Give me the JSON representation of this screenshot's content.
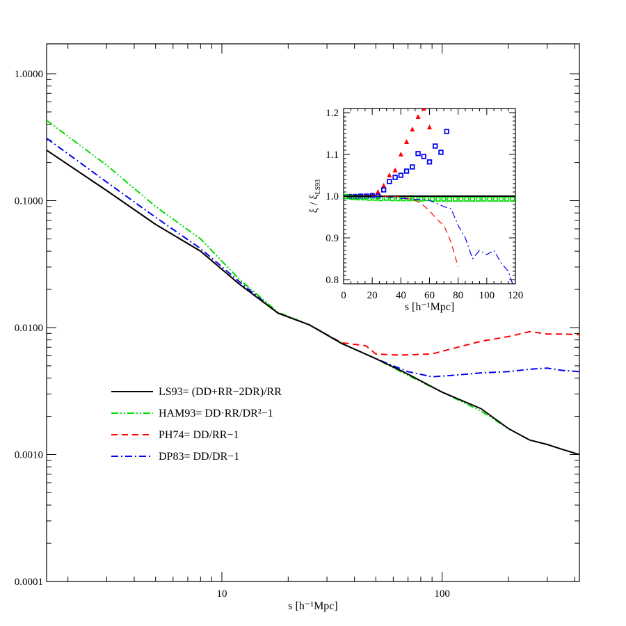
{
  "chart_data": [
    {
      "type": "line",
      "xlabel": "s [h⁻¹Mpc]",
      "ylabel": "",
      "xscale": "log",
      "yscale": "log",
      "xlim": [
        1.6,
        420
      ],
      "ylim": [
        0.0001,
        1.0
      ],
      "x_ticks": [
        "10",
        "100"
      ],
      "y_ticks": [
        "1.0000",
        "0.1000",
        "0.0100",
        "0.0010",
        "0.0001"
      ],
      "legend_placement": "lower-left",
      "grid": false,
      "series": [
        {
          "name": "LS93= (DD+RR−2DR)/RR",
          "color": "#000000",
          "dash": "solid",
          "x": [
            1.6,
            3,
            5,
            8,
            12,
            18,
            25,
            35,
            50,
            70,
            100,
            150,
            200,
            250,
            300,
            350,
            420
          ],
          "y": [
            0.25,
            0.12,
            0.065,
            0.04,
            0.022,
            0.013,
            0.0105,
            0.0075,
            0.0057,
            0.0043,
            0.0031,
            0.0023,
            0.0016,
            0.0013,
            0.0012,
            0.0011,
            0.001
          ]
        },
        {
          "name": "HAM93= DD·RR/DR²−1",
          "color": "#00dd00",
          "dash": "dash-dot-dot",
          "x": [
            1.6,
            3,
            5,
            8,
            12,
            18,
            25,
            35,
            50,
            70,
            100,
            150,
            200,
            250,
            300,
            350,
            420
          ],
          "y": [
            0.43,
            0.19,
            0.09,
            0.05,
            0.024,
            0.0132,
            0.0105,
            0.0075,
            0.0057,
            0.0042,
            0.0031,
            0.0022,
            0.0016,
            0.0013,
            0.0012,
            0.0011,
            0.001
          ]
        },
        {
          "name": "PH74= DD/RR−1",
          "color": "#ff0000",
          "dash": "dashed",
          "x": [
            1.6,
            3,
            5,
            8,
            12,
            18,
            25,
            35,
            45,
            50,
            60,
            70,
            90,
            110,
            150,
            200,
            250,
            300,
            350,
            420
          ],
          "y": [
            0.25,
            0.12,
            0.065,
            0.04,
            0.022,
            0.013,
            0.0105,
            0.0076,
            0.0072,
            0.0062,
            0.0061,
            0.0061,
            0.0062,
            0.0068,
            0.0078,
            0.0085,
            0.0093,
            0.0089,
            0.0089,
            0.0088
          ]
        },
        {
          "name": "DP83= DD/DR−1",
          "color": "#0000ee",
          "dash": "dash-dot",
          "x": [
            1.6,
            3,
            5,
            8,
            12,
            18,
            25,
            35,
            50,
            60,
            70,
            90,
            110,
            150,
            200,
            250,
            300,
            350,
            420
          ],
          "y": [
            0.31,
            0.14,
            0.074,
            0.042,
            0.023,
            0.013,
            0.0105,
            0.0075,
            0.0057,
            0.005,
            0.0045,
            0.0041,
            0.0042,
            0.0044,
            0.0045,
            0.0047,
            0.0048,
            0.0046,
            0.0045
          ]
        }
      ]
    },
    {
      "type": "scatter",
      "placement": "inset-top-right",
      "xlabel": "s [h⁻¹Mpc]",
      "ylabel": "ξ / ξ",
      "ylabel_sub": "LS93",
      "xlim": [
        0,
        120
      ],
      "ylim": [
        0.79,
        1.21
      ],
      "x_ticks": [
        "0",
        "20",
        "40",
        "60",
        "80",
        "100",
        "120"
      ],
      "y_ticks": [
        "0.8",
        "0.9",
        "1.0",
        "1.1",
        "1.2"
      ],
      "series": [
        {
          "marker": "triangle",
          "color": "#ff0000",
          "x": [
            4,
            8,
            12,
            16,
            20,
            24,
            28,
            32,
            36,
            40,
            44,
            48,
            52,
            56,
            60
          ],
          "y": [
            1.0,
            0.998,
            1.0,
            1.001,
            1.003,
            1.01,
            1.025,
            1.05,
            1.062,
            1.1,
            1.13,
            1.16,
            1.19,
            1.21,
            1.165
          ]
        },
        {
          "marker": "square",
          "color": "#0000ee",
          "x": [
            4,
            8,
            12,
            16,
            20,
            24,
            28,
            32,
            36,
            40,
            44,
            48,
            52,
            56,
            60,
            64,
            68,
            72
          ],
          "y": [
            0.999,
            0.999,
            1.0,
            1.0,
            1.001,
            1.0,
            1.015,
            1.035,
            1.045,
            1.05,
            1.06,
            1.07,
            1.102,
            1.095,
            1.082,
            1.12,
            1.105,
            1.155
          ]
        },
        {
          "marker": "square",
          "color": "#00dd00",
          "x": [
            2,
            6,
            10,
            14,
            18,
            22,
            26,
            30,
            34,
            38,
            42,
            46,
            50,
            54,
            58,
            62,
            66,
            70,
            74,
            78,
            82,
            86,
            90,
            94,
            98,
            102,
            106,
            110,
            114,
            118
          ],
          "y": [
            0.999,
            0.997,
            0.996,
            0.996,
            0.995,
            0.995,
            0.994,
            0.995,
            0.994,
            0.994,
            0.994,
            0.994,
            0.994,
            0.993,
            0.994,
            0.993,
            0.993,
            0.993,
            0.993,
            0.993,
            0.993,
            0.993,
            0.993,
            0.993,
            0.993,
            0.993,
            0.993,
            0.993,
            0.993,
            0.993
          ]
        },
        {
          "line": "solid",
          "color": "#000000",
          "x": [
            0,
            120
          ],
          "y": [
            1.0,
            1.0
          ]
        },
        {
          "line": "dashed",
          "color": "#ff0000",
          "x": [
            20,
            30,
            40,
            50,
            55,
            60,
            65,
            70,
            75,
            80
          ],
          "y": [
            1.0,
            1.0,
            0.998,
            0.99,
            0.98,
            0.965,
            0.945,
            0.93,
            0.89,
            0.83
          ]
        },
        {
          "line": "dash-dot",
          "color": "#0000ee",
          "x": [
            20,
            40,
            60,
            70,
            75,
            80,
            85,
            90,
            95,
            100,
            105,
            110,
            115,
            118
          ],
          "y": [
            1.0,
            0.995,
            0.99,
            0.975,
            0.97,
            0.93,
            0.9,
            0.85,
            0.87,
            0.86,
            0.87,
            0.84,
            0.82,
            0.79
          ]
        }
      ]
    }
  ]
}
